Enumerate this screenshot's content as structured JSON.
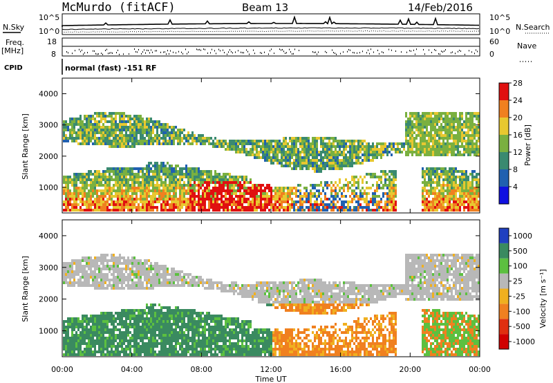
{
  "header": {
    "station": "McMurdo (fitACF)",
    "beam": "Beam 13",
    "date": "14/Feb/2016"
  },
  "left_labels": {
    "nsky": "N.Sky",
    "freq": "Freq.",
    "freq_unit": "[MHz]",
    "cpid": "CPID"
  },
  "right_labels": {
    "nsearch": "N.Search",
    "nave": "Nave"
  },
  "noise_panel": {
    "left_ticks": [
      "10^5",
      "10^0"
    ],
    "right_ticks": [
      "10^5",
      "10^0"
    ]
  },
  "freq_panel": {
    "left_ticks": [
      "18",
      "8"
    ],
    "right_ticks": [
      "60",
      "0"
    ]
  },
  "cpid_text": "normal (fast) -151 RF",
  "chart_data": [
    {
      "type": "heatmap",
      "name": "power",
      "ylabel": "Slant Range [km]",
      "xlabel": "Time UT",
      "x_ticks": [
        "00:00",
        "04:00",
        "08:00",
        "12:00",
        "16:00",
        "20:00",
        "00:00"
      ],
      "y_ticks": [
        "1000",
        "2000",
        "3000",
        "4000"
      ],
      "ylim": [
        180,
        4500
      ],
      "colorbar": {
        "label": "Power [dB]",
        "ticks": [
          "4",
          "8",
          "12",
          "16",
          "20",
          "24",
          "28"
        ],
        "colors": [
          "#1010e0",
          "#2060b0",
          "#3a8a70",
          "#7ab040",
          "#e8c830",
          "#f08020",
          "#e01010"
        ]
      }
    },
    {
      "type": "heatmap",
      "name": "velocity",
      "ylabel": "Slant Range [km]",
      "xlabel": "Time UT",
      "x_ticks": [
        "00:00",
        "04:00",
        "08:00",
        "12:00",
        "16:00",
        "20:00",
        "00:00"
      ],
      "y_ticks": [
        "1000",
        "2000",
        "3000",
        "4000"
      ],
      "ylim": [
        180,
        4500
      ],
      "colorbar": {
        "label": "Velocity [m s⁻¹]",
        "ticks": [
          "1000",
          "500",
          "100",
          "25",
          "-25",
          "-100",
          "-500",
          "-1000"
        ],
        "colors": [
          "#2040c0",
          "#3a8a60",
          "#5cc040",
          "#b8b8b8",
          "#f0b020",
          "#f08020",
          "#e03010",
          "#d00000"
        ]
      }
    }
  ],
  "xaxis_title": "Time UT"
}
